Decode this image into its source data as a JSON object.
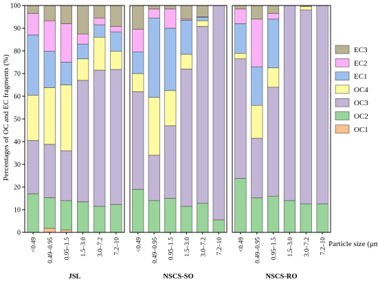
{
  "chart_data": {
    "type": "bar",
    "stacked": true,
    "ylabel": "Percentages of OC and EC fragments (%)",
    "xlabel": "Particle size (μm)",
    "ylim": [
      0,
      100
    ],
    "yticks": [
      0,
      10,
      20,
      30,
      40,
      50,
      60,
      70,
      80,
      90,
      100
    ],
    "grid": false,
    "legend_position": "right",
    "legend_order": [
      "EC3",
      "EC2",
      "EC1",
      "OC4",
      "OC3",
      "OC2",
      "OC1"
    ],
    "colors": {
      "OC1": "#f7c08c",
      "OC2": "#99d49a",
      "OC3": "#c3b5d6",
      "OC4": "#fdfa9f",
      "EC1": "#9cbfee",
      "EC2": "#fbb1f5",
      "EC3": "#b9b293"
    },
    "series_order": [
      "OC1",
      "OC2",
      "OC3",
      "OC4",
      "EC1",
      "EC2",
      "EC3"
    ],
    "groups": [
      {
        "name": "JSL",
        "categories": [
          "<0.49",
          "0.49–0.95",
          "0.95–1.5",
          "1.5–3.0",
          "3.0–7.2",
          "7.2–10"
        ],
        "series": [
          {
            "name": "OC1",
            "values": [
              0,
              1.8,
              1.0,
              0,
              0,
              0
            ]
          },
          {
            "name": "OC2",
            "values": [
              17.0,
              13.5,
              13.0,
              13.5,
              11.5,
              12.3
            ]
          },
          {
            "name": "OC3",
            "values": [
              23.5,
              23.5,
              22.0,
              53.5,
              60.0,
              59.5
            ]
          },
          {
            "name": "OC4",
            "values": [
              20.0,
              25.0,
              29.0,
              9.5,
              14.5,
              8.0
            ]
          },
          {
            "name": "EC1",
            "values": [
              26.5,
              16.0,
              10.0,
              6.5,
              5.5,
              8.5
            ]
          },
          {
            "name": "EC2",
            "values": [
              9.5,
              13.5,
              17.0,
              4.5,
              3.0,
              2.5
            ]
          },
          {
            "name": "EC3",
            "values": [
              3.5,
              6.7,
              8.0,
              12.5,
              5.5,
              9.2
            ]
          }
        ]
      },
      {
        "name": "NSCS-SO",
        "categories": [
          "<0.49",
          "0.49–0.95",
          "0.95–1.5",
          "1.5–3.0",
          "3.0–7.2",
          "7.2–10"
        ],
        "series": [
          {
            "name": "OC1",
            "values": [
              0,
              0,
              0,
              0,
              0,
              0
            ]
          },
          {
            "name": "OC2",
            "values": [
              19.0,
              14.0,
              15.0,
              11.5,
              12.8,
              5.5
            ]
          },
          {
            "name": "OC3",
            "values": [
              43.0,
              20.0,
              32.0,
              60.5,
              78.0,
              94.5
            ]
          },
          {
            "name": "OC4",
            "values": [
              8.0,
              25.5,
              15.5,
              6.5,
              2.5,
              0
            ]
          },
          {
            "name": "EC1",
            "values": [
              9.5,
              35.0,
              27.5,
              15.0,
              1.5,
              0
            ]
          },
          {
            "name": "EC2",
            "values": [
              10.0,
              4.0,
              8.5,
              0.5,
              0.2,
              0
            ]
          },
          {
            "name": "EC3",
            "values": [
              10.5,
              1.5,
              1.5,
              6.0,
              5.0,
              0
            ]
          }
        ]
      },
      {
        "name": "NSCS-RO",
        "categories": [
          "<0.49",
          "0.49–0.95",
          "0.95–1.5",
          "1.5–3.0",
          "3.0–7.2",
          "7.2–10"
        ],
        "series": [
          {
            "name": "OC1",
            "values": [
              0,
              0,
              0,
              0,
              0,
              0
            ]
          },
          {
            "name": "OC2",
            "values": [
              23.8,
              15.2,
              16.0,
              14.0,
              12.5,
              12.5
            ]
          },
          {
            "name": "OC3",
            "values": [
              52.7,
              26.3,
              48.0,
              86.0,
              85.5,
              87.5
            ]
          },
          {
            "name": "OC4",
            "values": [
              2.5,
              14.5,
              8.5,
              0,
              1.5,
              0
            ]
          },
          {
            "name": "EC1",
            "values": [
              13.0,
              17.0,
              21.5,
              0,
              0,
              0
            ]
          },
          {
            "name": "EC2",
            "values": [
              6.5,
              21.0,
              2.5,
              0,
              0,
              0
            ]
          },
          {
            "name": "EC3",
            "values": [
              1.5,
              6.0,
              3.5,
              0,
              0.5,
              0
            ]
          }
        ]
      }
    ]
  }
}
